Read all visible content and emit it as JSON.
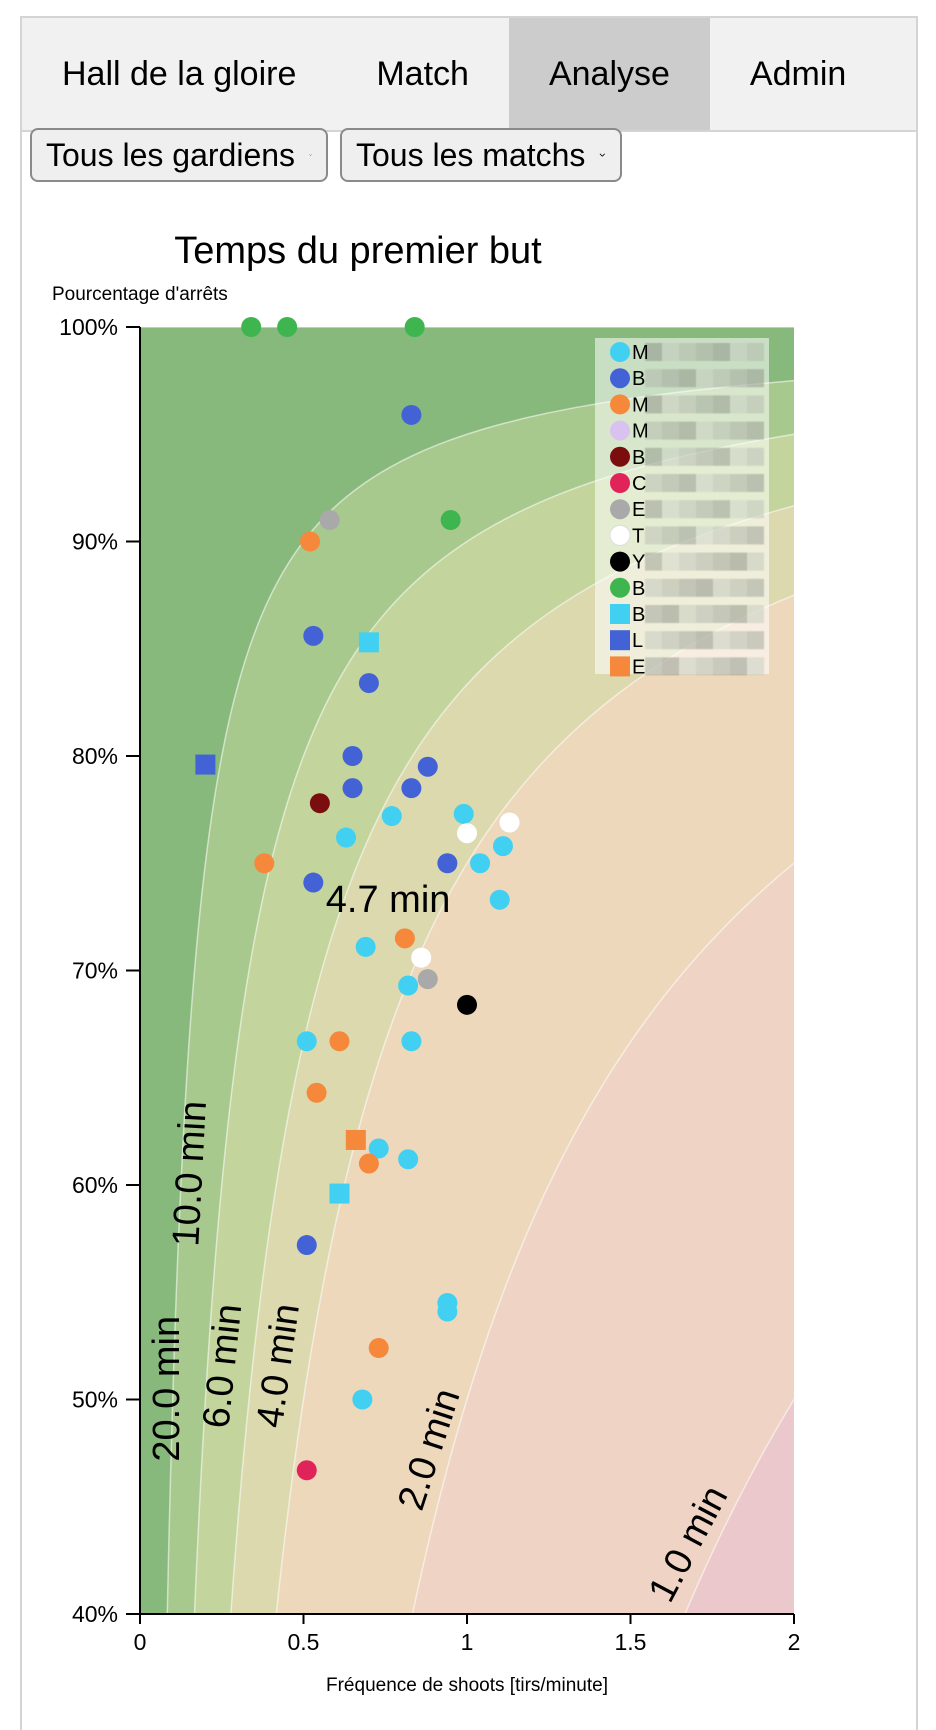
{
  "tabs": [
    {
      "label": "Hall de la gloire",
      "active": false
    },
    {
      "label": "Match",
      "active": false
    },
    {
      "label": "Analyse",
      "active": true
    },
    {
      "label": "Admin",
      "active": false
    }
  ],
  "filters": {
    "goalie_select": "Tous les gardiens",
    "match_select": "Tous les matchs"
  },
  "chart_data": {
    "type": "scatter",
    "title": "Temps du premier but",
    "xlabel": "Fréquence de shoots [tirs/minute]",
    "ylabel": "Pourcentage d'arrêts",
    "xlim": [
      0,
      2
    ],
    "ylim": [
      0.4,
      1.0
    ],
    "x_ticks": [
      {
        "value": 0,
        "label": "0"
      },
      {
        "value": 0.5,
        "label": "0.5"
      },
      {
        "value": 1,
        "label": "1"
      },
      {
        "value": 1.5,
        "label": "1.5"
      },
      {
        "value": 2,
        "label": "2"
      }
    ],
    "y_ticks": [
      {
        "value": 0.4,
        "label": "40%"
      },
      {
        "value": 0.5,
        "label": "50%"
      },
      {
        "value": 0.6,
        "label": "60%"
      },
      {
        "value": 0.7,
        "label": "70%"
      },
      {
        "value": 0.8,
        "label": "80%"
      },
      {
        "value": 0.9,
        "label": "90%"
      },
      {
        "value": 1.0,
        "label": "100%"
      }
    ],
    "contour_levels": [
      {
        "minutes": 20.0,
        "label": "20.0 min",
        "color": "#87b87c"
      },
      {
        "minutes": 10.0,
        "label": "10.0 min",
        "color": "#a8c98d"
      },
      {
        "minutes": 6.0,
        "label": "6.0 min",
        "color": "#c3d49c"
      },
      {
        "minutes": 4.0,
        "label": "4.0 min",
        "color": "#dcd9ae"
      },
      {
        "minutes": 2.0,
        "label": "2.0 min",
        "color": "#edd8bb"
      },
      {
        "minutes": 1.0,
        "label": "1.0 min",
        "color": "#efd3c4"
      },
      {
        "minutes": 0.0,
        "label": "",
        "color": "#ebc8cc"
      }
    ],
    "annotation": {
      "text": "4.7 min",
      "x": 0.77,
      "y": 0.73
    },
    "legend_position": "top-right",
    "series": [
      {
        "name": "M",
        "marker": "circle",
        "color": "#41d0f2",
        "points": [
          [
            0.99,
            0.773
          ],
          [
            1.11,
            0.758
          ],
          [
            1.04,
            0.75
          ],
          [
            1.1,
            0.733
          ],
          [
            0.77,
            0.772
          ],
          [
            0.63,
            0.762
          ],
          [
            0.69,
            0.711
          ],
          [
            0.82,
            0.693
          ],
          [
            0.51,
            0.667
          ],
          [
            0.83,
            0.667
          ],
          [
            0.73,
            0.617
          ],
          [
            0.82,
            0.612
          ],
          [
            0.94,
            0.545
          ],
          [
            0.94,
            0.541
          ],
          [
            0.68,
            0.5
          ]
        ]
      },
      {
        "name": "B",
        "marker": "circle",
        "color": "#4262d6",
        "points": [
          [
            0.83,
            0.959
          ],
          [
            0.53,
            0.856
          ],
          [
            0.7,
            0.834
          ],
          [
            0.65,
            0.8
          ],
          [
            0.88,
            0.795
          ],
          [
            0.65,
            0.785
          ],
          [
            0.83,
            0.785
          ],
          [
            0.94,
            0.75
          ],
          [
            0.53,
            0.741
          ],
          [
            0.51,
            0.572
          ]
        ]
      },
      {
        "name": "M",
        "marker": "circle",
        "color": "#f5883a",
        "points": [
          [
            0.52,
            0.9
          ],
          [
            0.38,
            0.75
          ],
          [
            0.81,
            0.715
          ],
          [
            0.61,
            0.667
          ],
          [
            0.54,
            0.643
          ],
          [
            0.7,
            0.61
          ],
          [
            0.73,
            0.524
          ]
        ]
      },
      {
        "name": "M",
        "marker": "circle",
        "color": "#d9c2f0",
        "points": []
      },
      {
        "name": "B",
        "marker": "circle",
        "color": "#7a0e0e",
        "points": [
          [
            0.55,
            0.778
          ]
        ]
      },
      {
        "name": "C",
        "marker": "circle",
        "color": "#e0245a",
        "points": [
          [
            0.51,
            0.467
          ]
        ]
      },
      {
        "name": "E",
        "marker": "circle",
        "color": "#a9a9a9",
        "points": [
          [
            0.58,
            0.91
          ],
          [
            0.88,
            0.696
          ]
        ]
      },
      {
        "name": "T",
        "marker": "circle",
        "color": "#ffffff",
        "points": [
          [
            1.0,
            0.764
          ],
          [
            1.13,
            0.769
          ],
          [
            0.86,
            0.706
          ]
        ]
      },
      {
        "name": "Y",
        "marker": "circle",
        "color": "#000000",
        "points": [
          [
            1.0,
            0.684
          ]
        ]
      },
      {
        "name": "B",
        "marker": "circle",
        "color": "#3fb54f",
        "points": [
          [
            0.34,
            1.0
          ],
          [
            0.45,
            1.0
          ],
          [
            0.84,
            1.0
          ],
          [
            0.95,
            0.91
          ]
        ]
      },
      {
        "name": "B",
        "marker": "square",
        "color": "#41d0f2",
        "points": [
          [
            0.7,
            0.853
          ],
          [
            0.61,
            0.596
          ]
        ]
      },
      {
        "name": "L",
        "marker": "square",
        "color": "#4262d6",
        "points": [
          [
            0.2,
            0.796
          ]
        ]
      },
      {
        "name": "E",
        "marker": "square",
        "color": "#f5883a",
        "points": [
          [
            0.66,
            0.621
          ]
        ]
      }
    ]
  }
}
